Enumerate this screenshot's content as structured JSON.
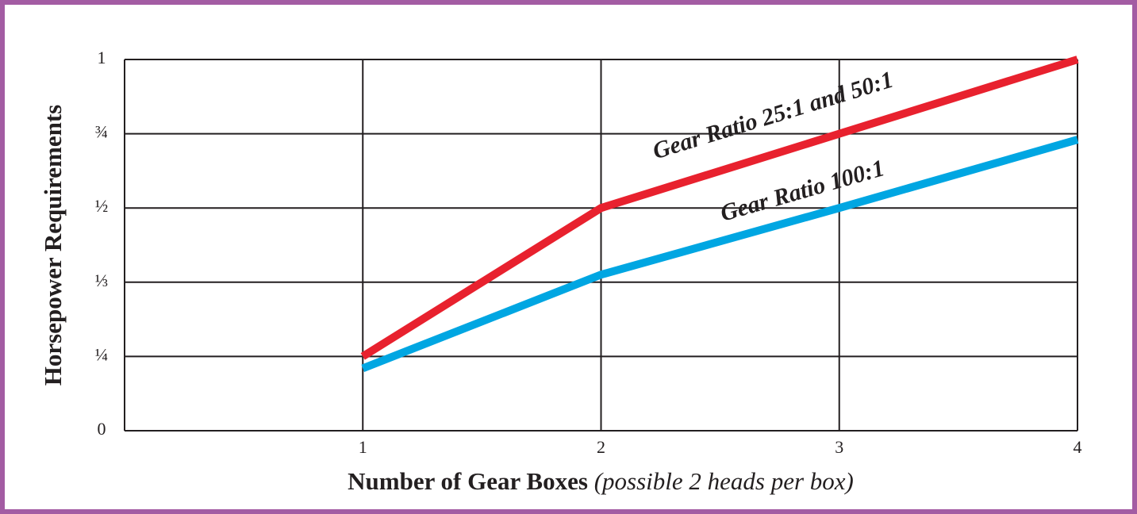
{
  "chart_data": {
    "type": "line",
    "y_label": "Horsepower Requirements",
    "x_label": "Number of Gear Boxes",
    "x_label_note": "(possible 2 heads per box)",
    "x": [
      1,
      2,
      3,
      4
    ],
    "series": [
      {
        "name": "Gear Ratio 25:1 and 50:1",
        "color": "#e8212e",
        "values": [
          0.25,
          0.5,
          0.75,
          1
        ]
      },
      {
        "name": "Gear Ratio 100:1",
        "color": "#00a6e2",
        "values": [
          0.21,
          0.35,
          0.5,
          0.73
        ]
      }
    ],
    "xlim": [
      0,
      4
    ],
    "xticks": [
      1,
      2,
      3,
      4
    ],
    "ylim": [
      0,
      1
    ],
    "yticks": [
      0,
      {
        "value": 0.25,
        "label": "¼"
      },
      {
        "value": 0.333,
        "label": "⅓"
      },
      {
        "value": 0.5,
        "label": "½"
      },
      {
        "value": 0.75,
        "label": "¾"
      },
      1
    ],
    "grid": true
  }
}
